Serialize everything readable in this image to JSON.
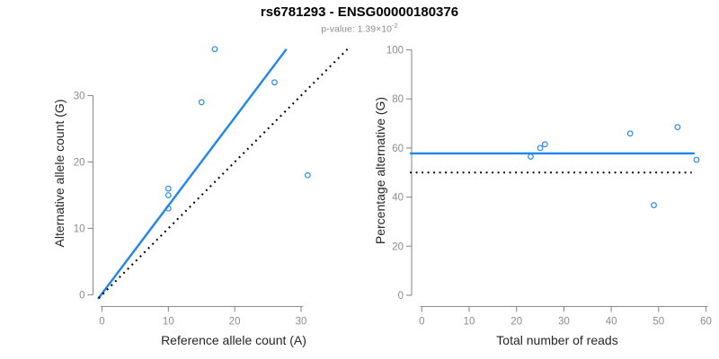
{
  "header": {
    "title": "rs6781293 - ENSG00000180376",
    "subtitle_label": "p-value: ",
    "subtitle_value": "1.39×10",
    "subtitle_exponent": "-2"
  },
  "colors": {
    "point_blue": "#1E86EE",
    "line_blue": "#1E86EE",
    "reference_black": "#000000",
    "axis_gray": "#8C8C8C",
    "tick_text_gray": "#8C8C8C",
    "axis_title_dark": "#262626"
  },
  "chart_data": [
    {
      "id": "allele-counts",
      "type": "scatter",
      "xlabel": "Reference allele count (A)",
      "ylabel": "Alternative allele count (G)",
      "xlim": [
        0,
        37
      ],
      "ylim": [
        0,
        37
      ],
      "xticks": [
        0,
        10,
        20,
        30
      ],
      "yticks": [
        0,
        10,
        20,
        30
      ],
      "grid": false,
      "legend": "none",
      "points": [
        [
          10,
          13
        ],
        [
          10,
          15
        ],
        [
          10,
          16
        ],
        [
          15,
          29
        ],
        [
          17,
          37
        ],
        [
          26,
          32
        ],
        [
          31,
          18
        ]
      ],
      "lines": [
        {
          "name": "fit-line",
          "style": "solid",
          "color_key": "line_blue",
          "x1": -0.6,
          "y1": -0.6,
          "x2": 27.8,
          "y2": 37.0
        },
        {
          "name": "identity-line",
          "style": "dotted",
          "color_key": "reference_black",
          "x1": -0.5,
          "y1": -0.5,
          "x2": 37.1,
          "y2": 37.1
        }
      ]
    },
    {
      "id": "percentage-vs-reads",
      "type": "scatter",
      "xlabel": "Total number of reads",
      "ylabel": "Percentage alternative (G)",
      "xlim": [
        0,
        60
      ],
      "ylim": [
        0,
        100
      ],
      "xticks": [
        0,
        10,
        20,
        30,
        40,
        50,
        60
      ],
      "yticks": [
        0,
        20,
        40,
        60,
        80,
        100
      ],
      "grid": false,
      "legend": "none",
      "points": [
        [
          23,
          56.5
        ],
        [
          25,
          60
        ],
        [
          26,
          61.5
        ],
        [
          44,
          65.9
        ],
        [
          49,
          36.7
        ],
        [
          54,
          68.5
        ],
        [
          58,
          55.2
        ]
      ],
      "lines": [
        {
          "name": "fit-line",
          "style": "solid",
          "color_key": "line_blue",
          "x1": -2.5,
          "y1": 57.8,
          "x2": 57.6,
          "y2": 57.8
        },
        {
          "name": "reference-line",
          "style": "dotted",
          "color_key": "reference_black",
          "x1": -2.5,
          "y1": 50.0,
          "x2": 57.0,
          "y2": 50.0
        }
      ]
    }
  ]
}
